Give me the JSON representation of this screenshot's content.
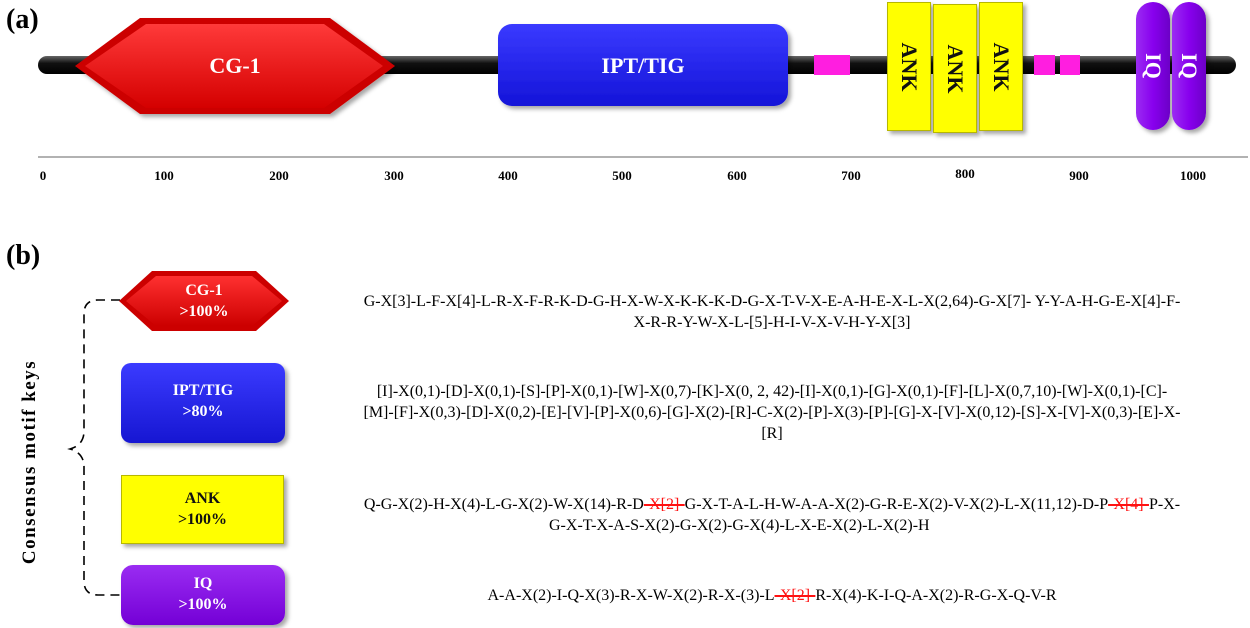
{
  "panel_a_label": "(a)",
  "panel_b_label": "(b)",
  "domains": {
    "cg1": "CG-1",
    "ipt": "IPT/TIG",
    "ank": [
      "ANK",
      "ANK",
      "ANK"
    ],
    "iq": [
      "IQ",
      "IQ"
    ]
  },
  "axis": {
    "ticks": [
      "0",
      "100",
      "200",
      "300",
      "400",
      "500",
      "600",
      "700",
      "800",
      "900",
      "1000"
    ]
  },
  "side_label": "Consensus motif keys",
  "motif_keys": [
    {
      "name": "CG-1",
      "pct": ">100%",
      "color": "#cc0000"
    },
    {
      "name": "IPT/TIG",
      "pct": ">80%",
      "color": "#1f1fe6"
    },
    {
      "name": "ANK",
      "pct": ">100%",
      "color": "#ffff00"
    },
    {
      "name": "IQ",
      "pct": ">100%",
      "color": "#8a00ee"
    }
  ],
  "motifs": {
    "cg1_line1": "G-X[3]-L-F-X[4]-L-R-X-F-R-K-D-G-H-X-W-X-K-K-K-D-G-X-T-V-X-E-A-H-E-X-L-X(2,64)-G-X[7]- Y-Y-A-H-G-E-X[4]-F-",
    "cg1_line2": "X-R-R-Y-W-X-L-[5]-H-I-V-X-V-H-Y-X[3]",
    "ipt_line1": "[I]-X(0,1)-[D]-X(0,1)-[S]-[P]-X(0,1)-[W]-X(0,7)-[K]-X(0, 2, 42)-[I]-X(0,1)-[G]-X(0,1)-[F]-[L]-X(0,7,10)-[W]-X(0,1)-[C]-",
    "ipt_line2": "[M]-[F]-X(0,3)-[D]-X(0,2)-[E]-[V]-[P]-X(0,6)-[G]-X(2)-[R]-C-X(2)-[P]-X(3)-[P]-[G]-X-[V]-X(0,12)-[S]-X-[V]-X(0,3)-[E]-X-",
    "ipt_line3": "[R]",
    "ank_l1_a": "Q-G-X(2)-H-X(4)-L-G-X(2)-W-X(14)-R-D",
    "ank_l1_s1": "-X[2]-",
    "ank_l1_b": "G-X-T-A-L-H-W-A-A-X(2)-G-R-E-X(2)-V-X(2)-L-X(11,12)-D-P",
    "ank_l1_s2": "-X[4]-",
    "ank_l1_c": "P-X-",
    "ank_line2": "G-X-T-X-A-S-X(2)-G-X(2)-G-X(4)-L-X-E-X(2)-L-X(2)-H",
    "iq_a": "A-A-X(2)-I-Q-X(3)-R-X-W-X(2)-R-X-(3)-L",
    "iq_s": "-X[2]-",
    "iq_b": "R-X(4)-K-I-Q-A-X(2)-R-G-X-Q-V-R"
  }
}
